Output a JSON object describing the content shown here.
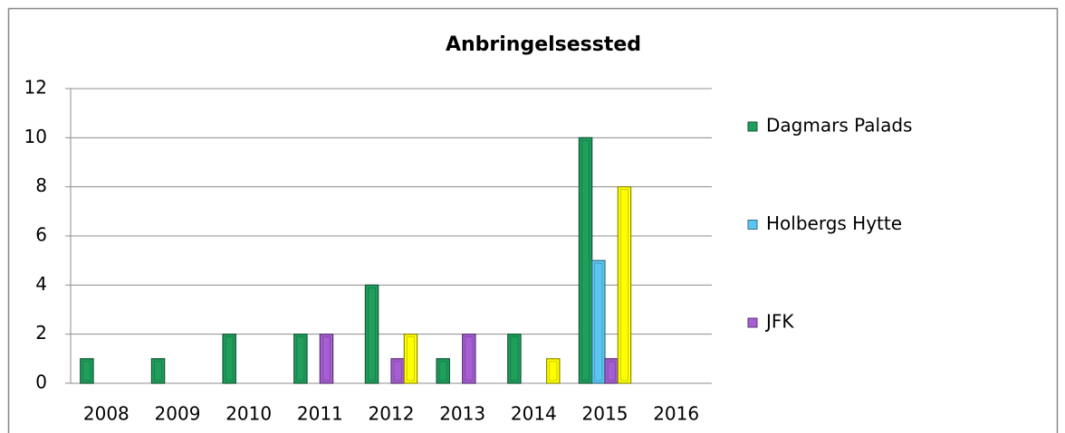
{
  "chart_data": {
    "type": "bar",
    "title": "Anbringelsessted",
    "categories": [
      "2008",
      "2009",
      "2010",
      "2011",
      "2012",
      "2013",
      "2014",
      "2015",
      "2016"
    ],
    "series": [
      {
        "name": "Dagmars Palads",
        "color": "#1f9e5c",
        "values": [
          1,
          1,
          2,
          2,
          4,
          1,
          2,
          10,
          null
        ]
      },
      {
        "name": "Holbergs Hytte",
        "color": "#5cc6f2",
        "values": [
          null,
          null,
          null,
          null,
          null,
          null,
          null,
          5,
          null
        ]
      },
      {
        "name": "JFK",
        "color": "#a65ed2",
        "values": [
          null,
          null,
          null,
          2,
          1,
          2,
          null,
          1,
          null
        ]
      },
      {
        "color": "#ffff00",
        "values": [
          null,
          null,
          null,
          null,
          2,
          null,
          1,
          8,
          null
        ]
      }
    ],
    "ylim": [
      0,
      12
    ],
    "yticks": [
      0,
      2,
      4,
      6,
      8,
      10,
      12
    ],
    "grid": true,
    "legend": "right"
  }
}
